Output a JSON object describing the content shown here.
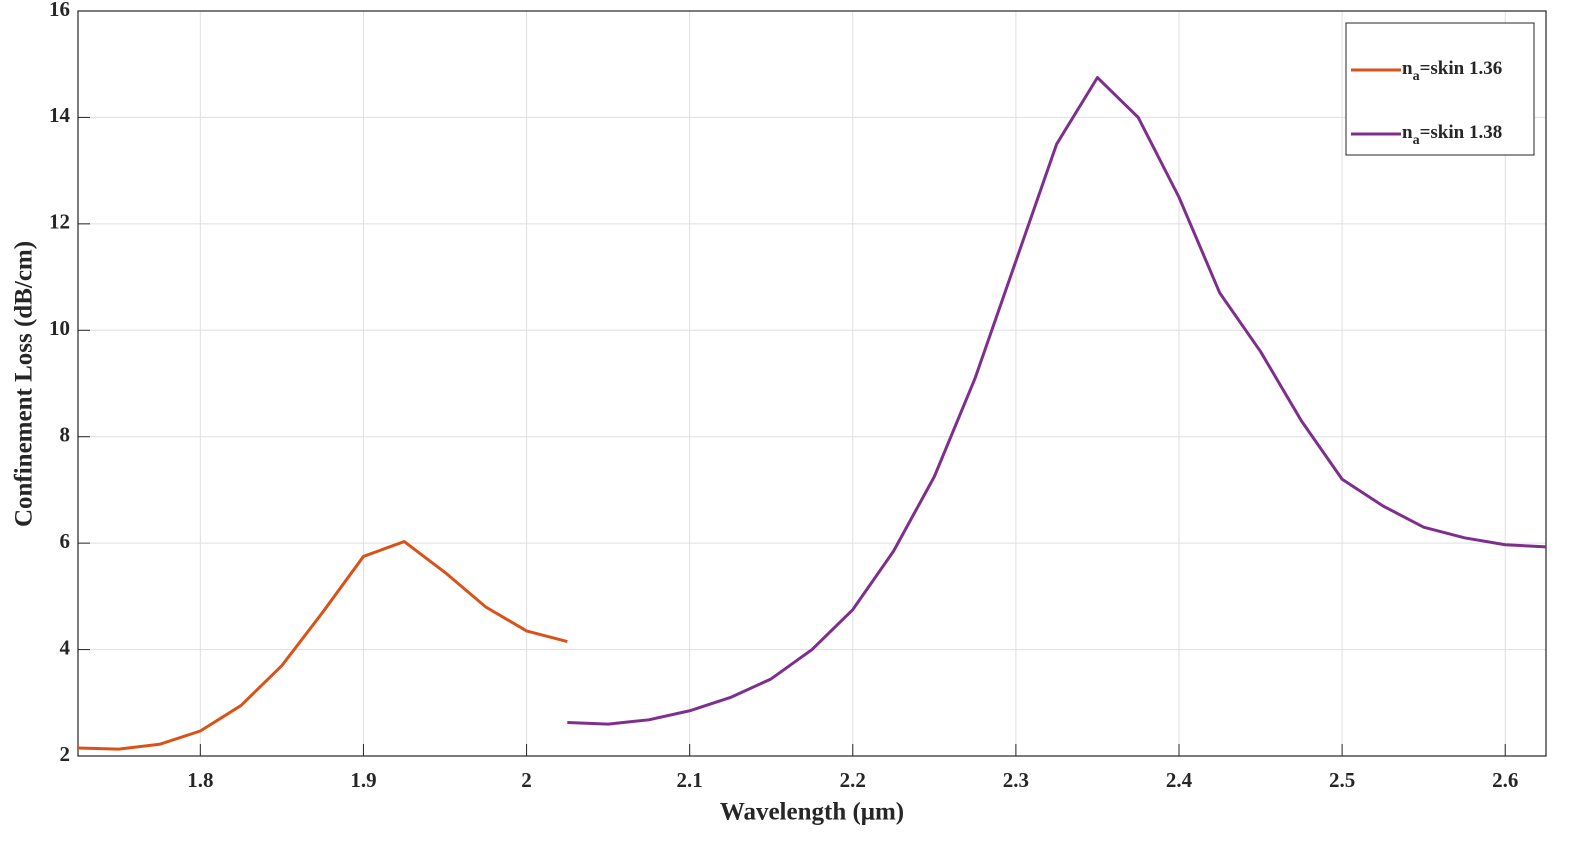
{
  "chart_data": {
    "type": "line",
    "xlabel": "Wavelength (μm)",
    "ylabel": "Confinement Loss (dB/cm)",
    "xlim": [
      1.725,
      2.625
    ],
    "ylim": [
      2,
      16
    ],
    "xticks": [
      1.8,
      1.9,
      2,
      2.1,
      2.2,
      2.3,
      2.4,
      2.5,
      2.6
    ],
    "yticks": [
      2,
      4,
      6,
      8,
      10,
      12,
      14,
      16
    ],
    "grid": true,
    "legend": "upper right",
    "series": [
      {
        "name": "na=skin 1.36",
        "color": "#d95319",
        "x": [
          1.725,
          1.75,
          1.775,
          1.8,
          1.825,
          1.85,
          1.875,
          1.9,
          1.925,
          1.95,
          1.975,
          2.0,
          2.025
        ],
        "values": [
          2.15,
          2.13,
          2.22,
          2.47,
          2.95,
          3.7,
          4.7,
          5.75,
          6.03,
          5.45,
          4.8,
          4.35,
          4.15
        ]
      },
      {
        "name": "na=skin 1.38",
        "color": "#7e2f8e",
        "x": [
          2.025,
          2.05,
          2.075,
          2.1,
          2.125,
          2.15,
          2.175,
          2.2,
          2.225,
          2.25,
          2.275,
          2.3,
          2.325,
          2.35,
          2.375,
          2.4,
          2.425,
          2.45,
          2.475,
          2.5,
          2.525,
          2.55,
          2.575,
          2.6,
          2.625
        ],
        "values": [
          2.63,
          2.6,
          2.68,
          2.85,
          3.1,
          3.45,
          4.0,
          4.75,
          5.85,
          7.25,
          9.1,
          11.3,
          13.5,
          14.75,
          14.0,
          12.5,
          10.7,
          9.6,
          8.3,
          7.2,
          6.7,
          6.3,
          6.1,
          5.97,
          5.93
        ]
      }
    ]
  }
}
